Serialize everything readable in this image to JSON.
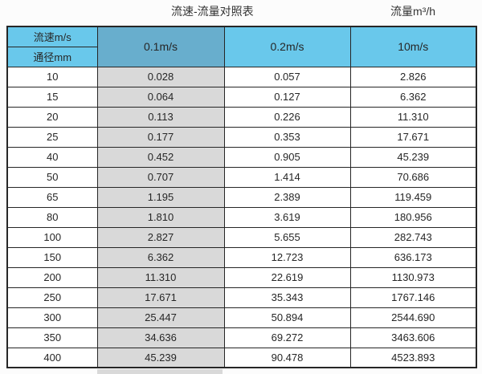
{
  "page": {
    "title_left": "流速-流量对照表",
    "title_right": "流量m³/h"
  },
  "table": {
    "corner": {
      "top": "流速m/s",
      "bottom": "通径mm"
    },
    "velocity_headers": [
      "0.1m/s",
      "0.2m/s",
      "10m/s"
    ],
    "rows": [
      {
        "dn": "10",
        "values": [
          "0.028",
          "0.057",
          "2.826"
        ]
      },
      {
        "dn": "15",
        "values": [
          "0.064",
          "0.127",
          "6.362"
        ]
      },
      {
        "dn": "20",
        "values": [
          "0.113",
          "0.226",
          "11.310"
        ]
      },
      {
        "dn": "25",
        "values": [
          "0.177",
          "0.353",
          "17.671"
        ]
      },
      {
        "dn": "40",
        "values": [
          "0.452",
          "0.905",
          "45.239"
        ]
      },
      {
        "dn": "50",
        "values": [
          "0.707",
          "1.414",
          "70.686"
        ]
      },
      {
        "dn": "65",
        "values": [
          "1.195",
          "2.389",
          "119.459"
        ]
      },
      {
        "dn": "80",
        "values": [
          "1.810",
          "3.619",
          "180.956"
        ]
      },
      {
        "dn": "100",
        "values": [
          "2.827",
          "5.655",
          "282.743"
        ]
      },
      {
        "dn": "150",
        "values": [
          "6.362",
          "12.723",
          "636.173"
        ]
      },
      {
        "dn": "200",
        "values": [
          "11.310",
          "22.619",
          "1130.973"
        ]
      },
      {
        "dn": "250",
        "values": [
          "17.671",
          "35.343",
          "1767.146"
        ]
      },
      {
        "dn": "300",
        "values": [
          "25.447",
          "50.894",
          "2544.690"
        ]
      },
      {
        "dn": "350",
        "values": [
          "34.636",
          "69.272",
          "3463.606"
        ]
      },
      {
        "dn": "400",
        "values": [
          "45.239",
          "90.478",
          "4523.893"
        ]
      }
    ]
  },
  "colors": {
    "header_blue": "#69c8eb",
    "header_dark_blue": "#68aecd",
    "gray_column": "#d9d9d9",
    "border": "#262626"
  },
  "chart_data": {
    "type": "table",
    "title": "流速-流量对照表",
    "value_unit_label": "流量m³/h",
    "columns": [
      "通径mm",
      "0.1m/s",
      "0.2m/s",
      "10m/s"
    ],
    "rows": [
      [
        10,
        0.028,
        0.057,
        2.826
      ],
      [
        15,
        0.064,
        0.127,
        6.362
      ],
      [
        20,
        0.113,
        0.226,
        11.31
      ],
      [
        25,
        0.177,
        0.353,
        17.671
      ],
      [
        40,
        0.452,
        0.905,
        45.239
      ],
      [
        50,
        0.707,
        1.414,
        70.686
      ],
      [
        65,
        1.195,
        2.389,
        119.459
      ],
      [
        80,
        1.81,
        3.619,
        180.956
      ],
      [
        100,
        2.827,
        5.655,
        282.743
      ],
      [
        150,
        6.362,
        12.723,
        636.173
      ],
      [
        200,
        11.31,
        22.619,
        1130.973
      ],
      [
        250,
        17.671,
        35.343,
        1767.146
      ],
      [
        300,
        25.447,
        50.894,
        2544.69
      ],
      [
        350,
        34.636,
        69.272,
        3463.606
      ],
      [
        400,
        45.239,
        90.478,
        4523.893
      ]
    ]
  }
}
